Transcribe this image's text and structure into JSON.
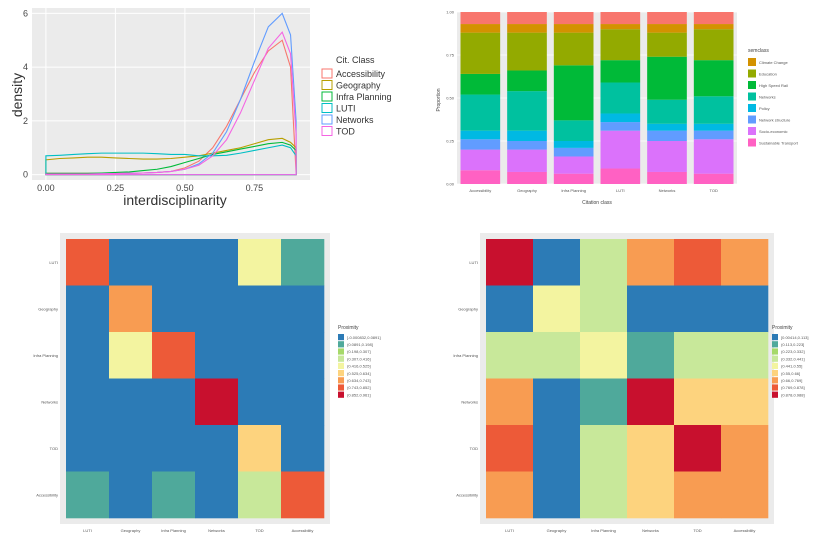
{
  "chart_data": [
    {
      "type": "line",
      "subtype": "density",
      "xlabel": "interdisciplinarity",
      "ylabel": "density",
      "xlim": [
        -0.05,
        0.95
      ],
      "ylim": [
        -0.2,
        6.2
      ],
      "xticks": [
        "0.00",
        "0.25",
        "0.50",
        "0.75"
      ],
      "yticks": [
        "0",
        "2",
        "4",
        "6"
      ],
      "grid": true,
      "background": "#ebebeb",
      "legend": {
        "title": "Cit. Class",
        "placement": "right",
        "entries": [
          "Accessibility",
          "Geography",
          "Infra Planning",
          "LUTI",
          "Networks",
          "TOD"
        ]
      },
      "x": [
        0.0,
        0.05,
        0.1,
        0.15,
        0.2,
        0.25,
        0.3,
        0.35,
        0.4,
        0.45,
        0.5,
        0.55,
        0.6,
        0.65,
        0.7,
        0.75,
        0.8,
        0.85,
        0.88,
        0.9
      ],
      "series": [
        {
          "name": "Accessibility",
          "color": "#f8766d",
          "values": [
            0.05,
            0.05,
            0.05,
            0.05,
            0.05,
            0.05,
            0.05,
            0.06,
            0.08,
            0.12,
            0.25,
            0.5,
            1.0,
            1.8,
            2.8,
            3.8,
            4.6,
            5.0,
            4.0,
            0.05
          ]
        },
        {
          "name": "Geography",
          "color": "#b79f00",
          "values": [
            0.55,
            0.6,
            0.62,
            0.65,
            0.65,
            0.62,
            0.6,
            0.58,
            0.58,
            0.6,
            0.65,
            0.7,
            0.8,
            0.9,
            1.0,
            1.15,
            1.3,
            1.35,
            1.2,
            1.0
          ]
        },
        {
          "name": "Infra Planning",
          "color": "#00ba38",
          "values": [
            0.05,
            0.05,
            0.05,
            0.05,
            0.06,
            0.08,
            0.1,
            0.15,
            0.2,
            0.3,
            0.45,
            0.6,
            0.75,
            0.85,
            0.95,
            1.05,
            1.15,
            1.2,
            1.1,
            0.9
          ]
        },
        {
          "name": "LUTI",
          "color": "#00bfc4",
          "values": [
            0.7,
            0.72,
            0.75,
            0.78,
            0.8,
            0.8,
            0.8,
            0.8,
            0.78,
            0.75,
            0.75,
            0.7,
            0.7,
            0.72,
            0.8,
            0.9,
            1.0,
            1.1,
            1.0,
            0.7
          ]
        },
        {
          "name": "Networks",
          "color": "#619cff",
          "values": [
            0.02,
            0.02,
            0.02,
            0.02,
            0.03,
            0.04,
            0.05,
            0.06,
            0.08,
            0.12,
            0.2,
            0.4,
            0.8,
            1.6,
            2.8,
            4.2,
            5.5,
            6.0,
            5.2,
            2.0
          ]
        },
        {
          "name": "TOD",
          "color": "#f564e3",
          "values": [
            0.02,
            0.02,
            0.02,
            0.02,
            0.03,
            0.04,
            0.05,
            0.06,
            0.08,
            0.12,
            0.2,
            0.35,
            0.7,
            1.3,
            2.3,
            3.5,
            4.7,
            5.3,
            4.5,
            1.5
          ]
        }
      ]
    },
    {
      "type": "bar",
      "subtype": "stacked-proportion",
      "xlabel": "Citation class",
      "ylabel": "Proportion",
      "ylim": [
        0,
        1
      ],
      "yticks": [
        "0.00",
        "0.25",
        "0.50",
        "0.75",
        "1.00"
      ],
      "categories": [
        "Accessibility",
        "Geography",
        "Infra Planning",
        "LUTI",
        "Networks",
        "TOD"
      ],
      "background": "#ebebeb",
      "legend": {
        "title": "semclass",
        "placement": "right"
      },
      "series": [
        {
          "name": "Sustainable Transport",
          "color": "#ff61c3",
          "values": [
            0.08,
            0.07,
            0.06,
            0.09,
            0.07,
            0.06
          ]
        },
        {
          "name": "Socio-economic",
          "color": "#db72fb",
          "values": [
            0.12,
            0.13,
            0.1,
            0.22,
            0.18,
            0.2
          ]
        },
        {
          "name": "Network structure",
          "color": "#619cff",
          "values": [
            0.06,
            0.05,
            0.05,
            0.05,
            0.06,
            0.05
          ]
        },
        {
          "name": "Policy",
          "color": "#00b9e3",
          "values": [
            0.05,
            0.06,
            0.04,
            0.05,
            0.04,
            0.04
          ]
        },
        {
          "name": "Networks",
          "color": "#00c19f",
          "values": [
            0.21,
            0.23,
            0.12,
            0.18,
            0.14,
            0.16
          ]
        },
        {
          "name": "High Speed Rail",
          "color": "#00ba38",
          "values": [
            0.12,
            0.12,
            0.32,
            0.13,
            0.25,
            0.21
          ]
        },
        {
          "name": "Education",
          "color": "#93aa00",
          "values": [
            0.24,
            0.22,
            0.19,
            0.18,
            0.14,
            0.18
          ]
        },
        {
          "name": "Climate Change",
          "color": "#d39200",
          "values": [
            0.05,
            0.05,
            0.05,
            0.03,
            0.05,
            0.03
          ]
        },
        {
          "name": "",
          "color": "#f8766d",
          "values": [
            0.07,
            0.07,
            0.07,
            0.07,
            0.07,
            0.07
          ]
        }
      ]
    },
    {
      "type": "heatmap",
      "rows": [
        "LUTI",
        "Geography",
        "Infra Planning",
        "Networks",
        "TOD",
        "Accessibility"
      ],
      "cols": [
        "LUTI",
        "Geography",
        "Infra Planning",
        "Networks",
        "TOD",
        "Accessibility"
      ],
      "legend": {
        "title": "Proximity",
        "placement": "right",
        "bins": [
          "[-0.000832,0.0891]",
          "(0.0891,0.198]",
          "(0.198,0.307]",
          "(0.307,0.416]",
          "(0.416,0.525]",
          "(0.525,0.634]",
          "(0.634,0.743]",
          "(0.743,0.852]",
          "(0.852,0.961]"
        ]
      },
      "cells": [
        [
          7,
          0,
          0,
          0,
          4,
          1
        ],
        [
          0,
          6,
          0,
          0,
          0,
          0
        ],
        [
          0,
          4,
          7,
          0,
          0,
          0
        ],
        [
          0,
          0,
          0,
          8,
          0,
          0
        ],
        [
          0,
          0,
          0,
          0,
          5,
          0
        ],
        [
          1,
          0,
          1,
          0,
          3,
          7
        ]
      ]
    },
    {
      "type": "heatmap",
      "rows": [
        "LUTI",
        "Geography",
        "Infra Planning",
        "Networks",
        "TOD",
        "Accessibility"
      ],
      "cols": [
        "LUTI",
        "Geography",
        "Infra Planning",
        "Networks",
        "TOD",
        "Accessibility"
      ],
      "legend": {
        "title": "Proximity",
        "placement": "right",
        "bins": [
          "[0.00414,0.113]",
          "(0.113,0.223]",
          "(0.223,0.332]",
          "(0.332,0.441]",
          "(0.441,0.55]",
          "(0.55,0.66]",
          "(0.66,0.769]",
          "(0.769,0.878]",
          "(0.878,0.988]"
        ]
      },
      "cells": [
        [
          8,
          0,
          3,
          6,
          7,
          6
        ],
        [
          0,
          4,
          3,
          0,
          0,
          0
        ],
        [
          3,
          3,
          4,
          1,
          3,
          3
        ],
        [
          6,
          0,
          1,
          8,
          5,
          5
        ],
        [
          7,
          0,
          3,
          5,
          8,
          6
        ],
        [
          6,
          0,
          3,
          5,
          6,
          6
        ]
      ]
    }
  ],
  "colors": {
    "heat_scale": [
      "#2c7bb6",
      "#4fa99b",
      "#a6d96a",
      "#c8e89a",
      "#f3f4a0",
      "#fdd37e",
      "#f89c52",
      "#ed5a38",
      "#c8102e"
    ]
  }
}
